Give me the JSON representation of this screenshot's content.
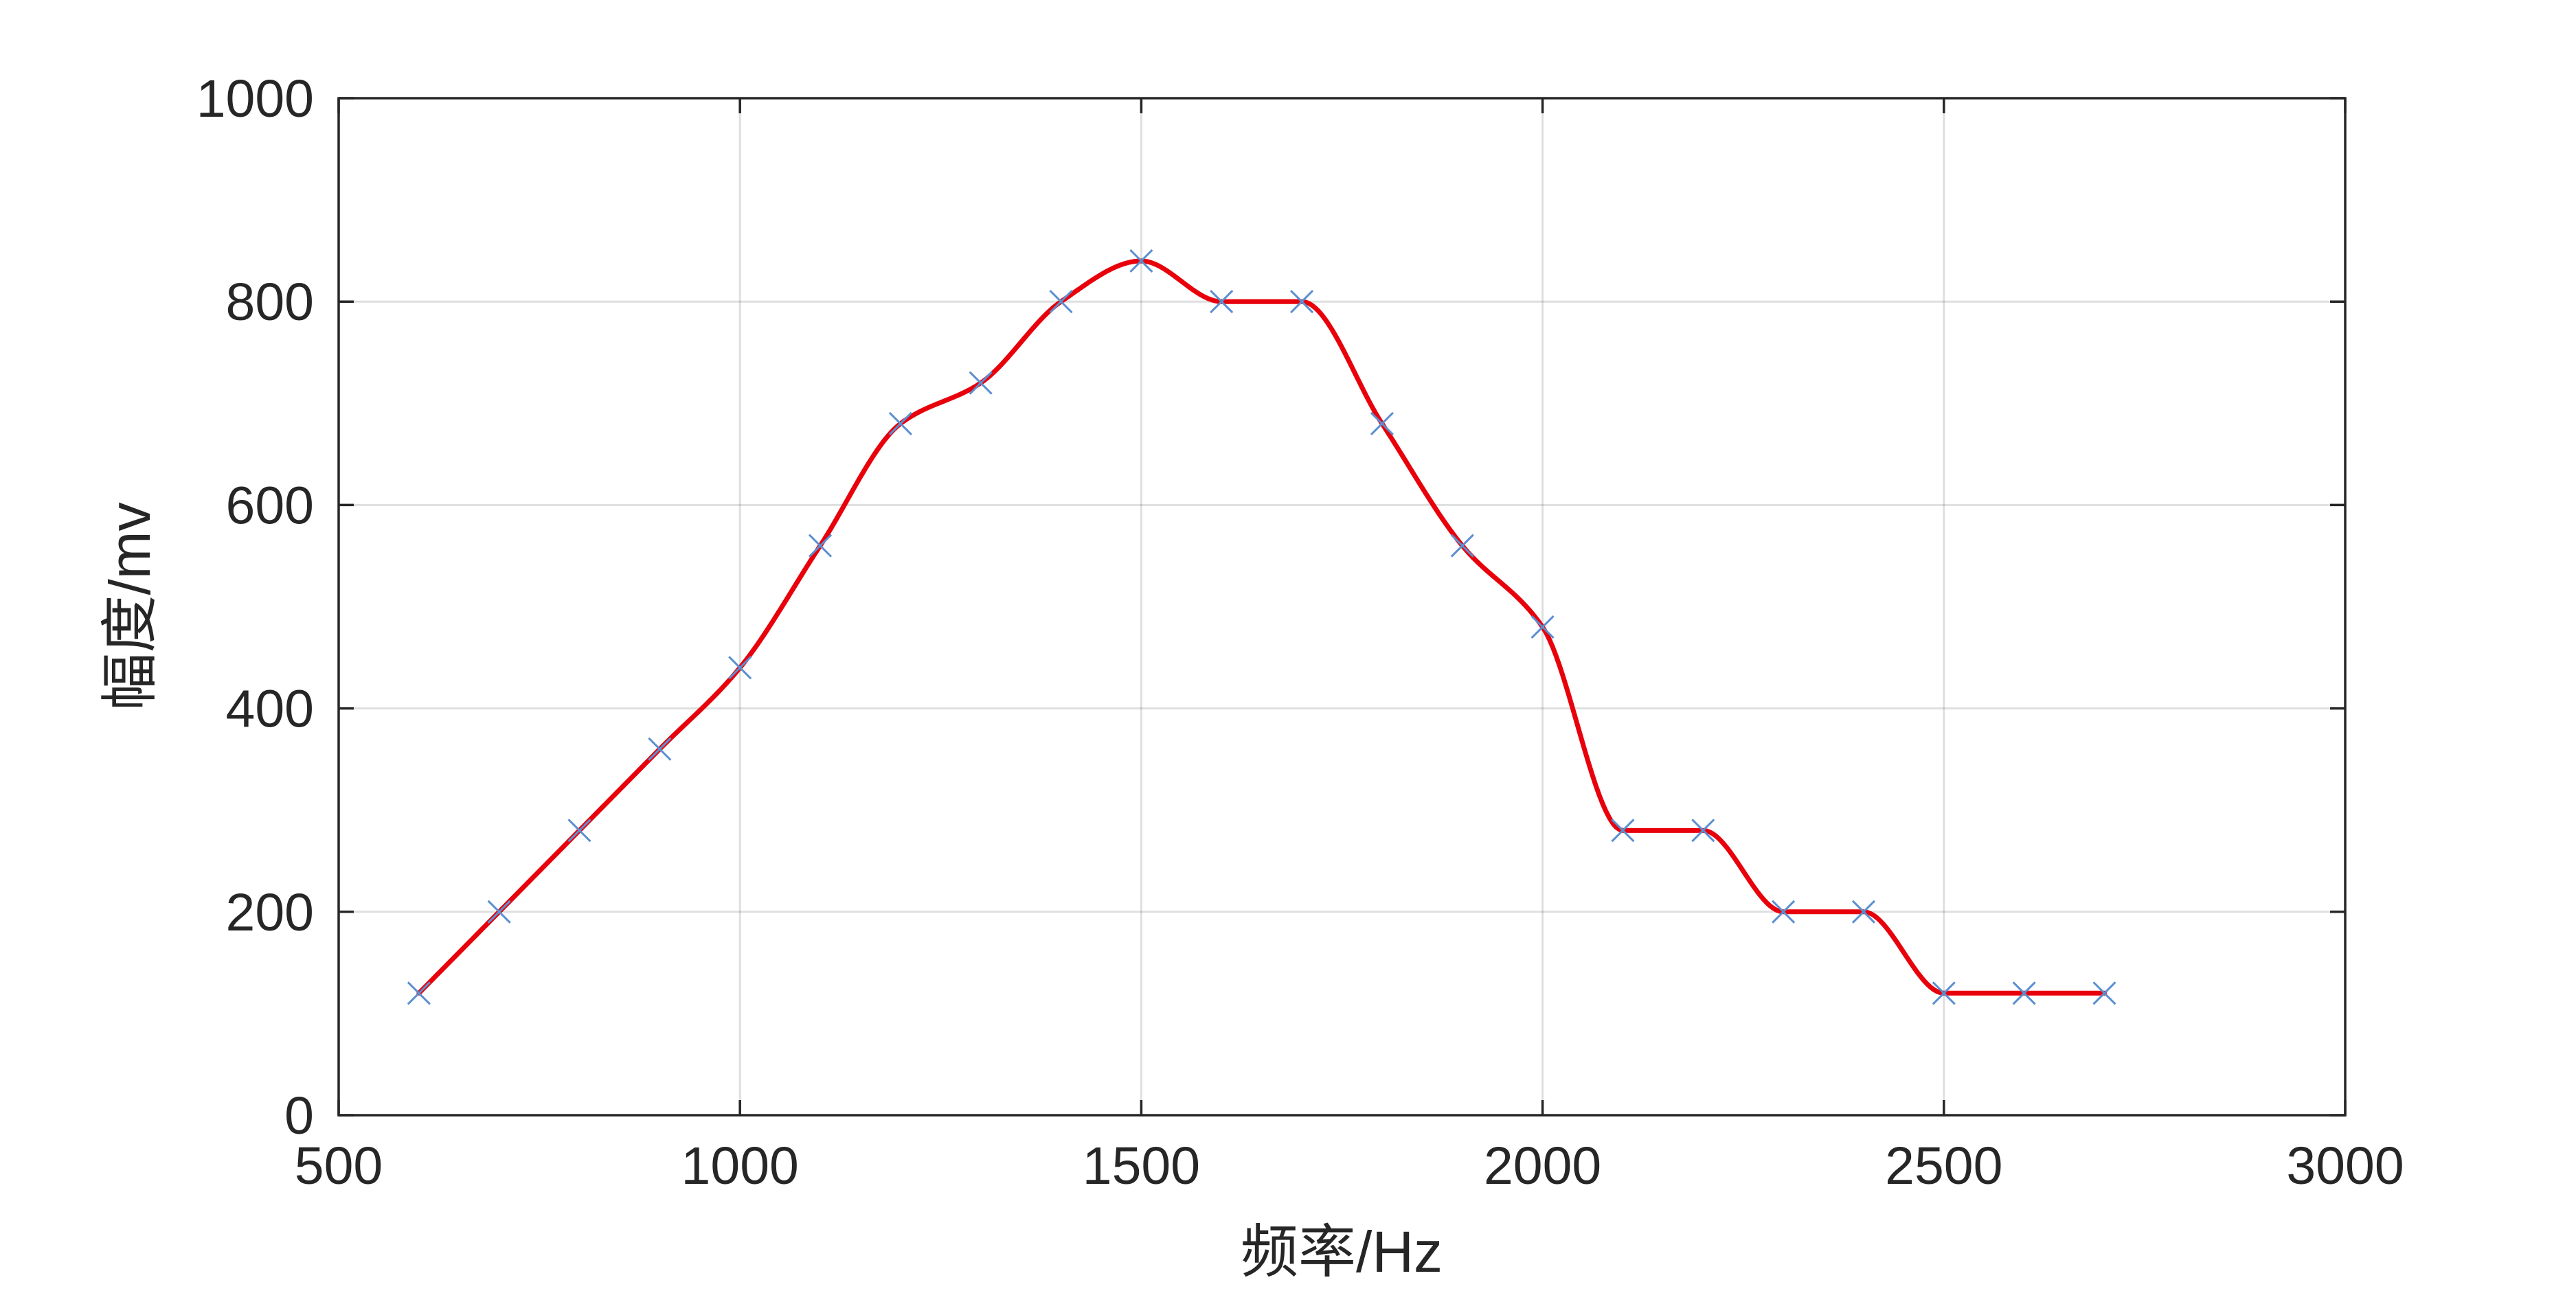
{
  "chart_data": {
    "type": "line",
    "title": "",
    "xlabel": "频率/Hz",
    "ylabel": "幅度/mv",
    "xlim": [
      500,
      3000
    ],
    "ylim": [
      0,
      1000
    ],
    "xticks": [
      500,
      1000,
      1500,
      2000,
      2500,
      3000
    ],
    "yticks": [
      0,
      200,
      400,
      600,
      800,
      1000
    ],
    "xtick_labels": [
      "500",
      "1000",
      "1500",
      "2000",
      "2500",
      "3000"
    ],
    "ytick_labels": [
      "0",
      "200",
      "400",
      "600",
      "800",
      "1000"
    ],
    "grid": true,
    "legend": "none",
    "series": [
      {
        "kind": "markers",
        "marker": "x",
        "color": "#5b8fd0",
        "x": [
          600,
          700,
          800,
          900,
          1000,
          1100,
          1200,
          1300,
          1400,
          1500,
          1600,
          1700,
          1800,
          1900,
          2000,
          2100,
          2200,
          2300,
          2400,
          2500,
          2600,
          2700
        ],
        "y": [
          120,
          200,
          280,
          360,
          440,
          560,
          680,
          720,
          800,
          840,
          800,
          800,
          680,
          560,
          480,
          280,
          280,
          200,
          200,
          120,
          120,
          120
        ]
      },
      {
        "kind": "smooth-line",
        "color": "#e8000b",
        "x": [
          600,
          700,
          800,
          900,
          1000,
          1100,
          1200,
          1300,
          1400,
          1500,
          1600,
          1700,
          1800,
          1900,
          2000,
          2100,
          2200,
          2300,
          2400,
          2500,
          2600,
          2700
        ],
        "y": [
          120,
          200,
          280,
          360,
          440,
          560,
          680,
          720,
          800,
          840,
          800,
          800,
          680,
          560,
          480,
          280,
          280,
          200,
          200,
          120,
          120,
          120
        ]
      }
    ]
  }
}
